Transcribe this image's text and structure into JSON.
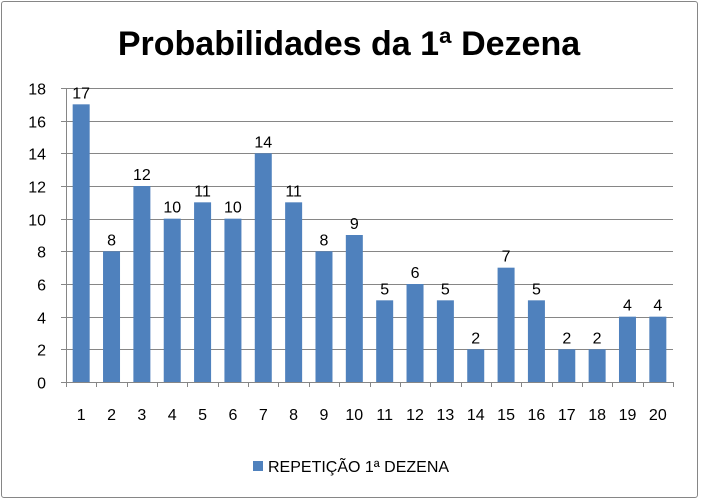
{
  "chart_data": {
    "type": "bar",
    "title": "Probabilidades da 1ª Dezena",
    "xlabel": "",
    "ylabel": "",
    "categories": [
      "1",
      "2",
      "3",
      "4",
      "5",
      "6",
      "7",
      "8",
      "9",
      "10",
      "11",
      "12",
      "13",
      "14",
      "15",
      "16",
      "17",
      "18",
      "19",
      "20"
    ],
    "series": [
      {
        "name": "REPETIÇÃO 1ª DEZENA",
        "values": [
          17,
          8,
          12,
          10,
          11,
          10,
          14,
          11,
          8,
          9,
          5,
          6,
          5,
          2,
          7,
          5,
          2,
          2,
          4,
          4
        ],
        "color": "#4F81BD"
      }
    ],
    "ylim": [
      0,
      18
    ],
    "yticks": [
      0,
      2,
      4,
      6,
      8,
      10,
      12,
      14,
      16,
      18
    ],
    "grid": true,
    "gridlines_color": "#868686",
    "data_labels": true,
    "legend_position": "bottom"
  }
}
